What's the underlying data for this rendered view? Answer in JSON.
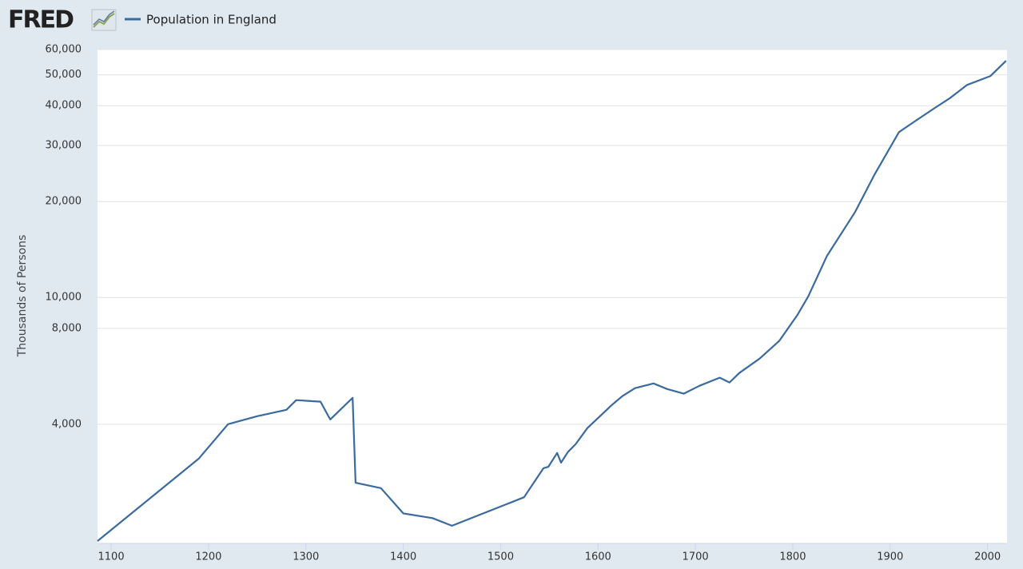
{
  "header": {
    "logo": "FRED"
  },
  "chart_data": {
    "type": "line",
    "y_label": "Thousands of Persons",
    "log_y": true,
    "grid": true,
    "x": [
      1086,
      1190,
      1220,
      1250,
      1280,
      1290,
      1315,
      1325,
      1348,
      1351,
      1377,
      1400,
      1430,
      1450,
      1524,
      1544,
      1549,
      1558,
      1562,
      1569,
      1577,
      1589,
      1602,
      1614,
      1625,
      1638,
      1657,
      1671,
      1688,
      1704,
      1725,
      1735,
      1745,
      1766,
      1786,
      1805,
      1816,
      1835,
      1864,
      1884,
      1909,
      1921,
      1946,
      1962,
      1979,
      2003,
      2019
    ],
    "series": [
      {
        "name": "Population in England",
        "color": "#3a6a9e",
        "values": [
          1720,
          3120,
          4000,
          4240,
          4440,
          4760,
          4710,
          4140,
          4840,
          2620,
          2520,
          2100,
          2030,
          1920,
          2360,
          2910,
          2940,
          3250,
          3030,
          3270,
          3460,
          3890,
          4240,
          4590,
          4900,
          5190,
          5370,
          5160,
          4990,
          5280,
          5600,
          5410,
          5790,
          6430,
          7300,
          8830,
          10090,
          13490,
          18540,
          24320,
          33040,
          34990,
          39350,
          42360,
          46450,
          49550,
          55320
        ]
      }
    ],
    "xlim": [
      1086,
      2020
    ],
    "xticks": [
      1100,
      1200,
      1300,
      1400,
      1500,
      1600,
      1700,
      1800,
      1900,
      2000
    ],
    "ylim": [
      1690,
      60000
    ],
    "yticks": [
      {
        "value": 4000,
        "label": "4,000"
      },
      {
        "value": 8000,
        "label": "8,000"
      },
      {
        "value": 10000,
        "label": "10,000"
      },
      {
        "value": 20000,
        "label": "20,000"
      },
      {
        "value": 30000,
        "label": "30,000"
      },
      {
        "value": 40000,
        "label": "40,000"
      },
      {
        "value": 50000,
        "label": "50,000"
      },
      {
        "value": 60000,
        "label": "60,000"
      }
    ]
  }
}
